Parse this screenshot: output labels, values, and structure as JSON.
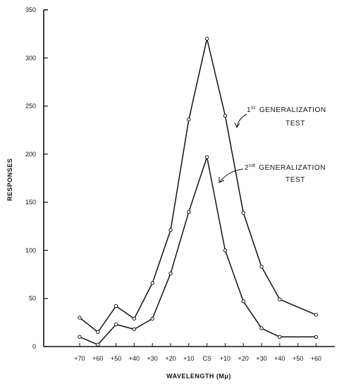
{
  "chart_data": {
    "type": "line",
    "xlabel": "WAVELENGTH (Mμ)",
    "ylabel": "RESPONSES",
    "ylim": [
      0,
      350
    ],
    "yticks": [
      0,
      50,
      100,
      150,
      200,
      250,
      300,
      350
    ],
    "categories": [
      "+70",
      "+60",
      "+50",
      "+40",
      "+30",
      "+20",
      "+10",
      "CS",
      "+10",
      "+20",
      "+30",
      "+40",
      "+50",
      "+60"
    ],
    "series": [
      {
        "name": "1st GENERALIZATION TEST",
        "name_parts": {
          "num": "1",
          "sup": "st",
          "line1": "GENERALIZATION",
          "line2": "TEST"
        },
        "values": [
          30,
          15,
          42,
          29,
          66,
          121,
          236,
          320,
          240,
          139,
          83,
          49,
          null,
          33
        ]
      },
      {
        "name": "2nd GENERALIZATION TEST",
        "name_parts": {
          "num": "2",
          "sup": "nd",
          "line1": "GENERALIZATION",
          "line2": "TEST"
        },
        "values": [
          10,
          2,
          23,
          18,
          29,
          76,
          140,
          197,
          100,
          47,
          19,
          10,
          null,
          10
        ]
      }
    ],
    "grid": false,
    "legend": "inline annotations with arrows"
  }
}
